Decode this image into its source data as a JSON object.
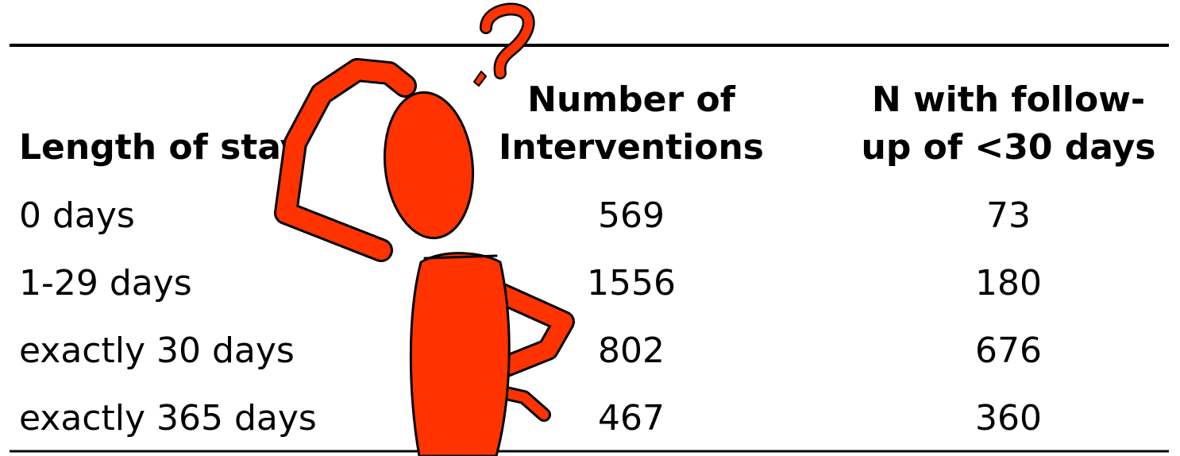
{
  "table": {
    "header": [
      [
        "Length of stay"
      ],
      [
        "Number of",
        "Interventions"
      ],
      [
        "N with follow-",
        "up of <30 days"
      ]
    ],
    "rows": [
      [
        "0 days",
        569,
        73
      ],
      [
        "1-29 days",
        1556,
        180
      ],
      [
        "exactly 30 days",
        802,
        676
      ],
      [
        "exactly 365 days",
        467,
        360
      ]
    ]
  }
}
